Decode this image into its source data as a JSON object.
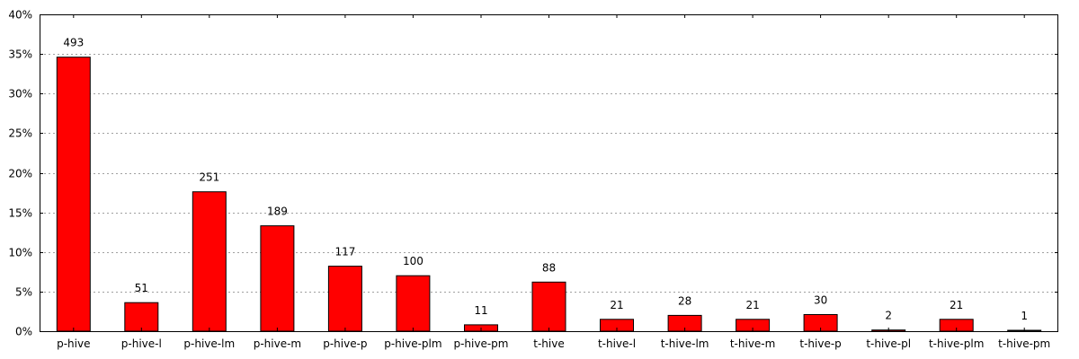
{
  "chart_data": {
    "type": "bar",
    "categories": [
      "p-hive",
      "p-hive-l",
      "p-hive-lm",
      "p-hive-m",
      "p-hive-p",
      "p-hive-plm",
      "p-hive-pm",
      "t-hive",
      "t-hive-l",
      "t-hive-lm",
      "t-hive-m",
      "t-hive-p",
      "t-hive-pl",
      "t-hive-plm",
      "t-hive-pm"
    ],
    "values": [
      34.6,
      3.6,
      17.6,
      13.3,
      8.2,
      7.0,
      0.8,
      6.2,
      1.5,
      2.0,
      1.5,
      2.1,
      0.15,
      1.5,
      0.08
    ],
    "labels": [
      "493",
      "51",
      "251",
      "189",
      "117",
      "100",
      "11",
      "88",
      "21",
      "28",
      "21",
      "30",
      "2",
      "21",
      "1"
    ],
    "y_ticks": [
      "0%",
      "5%",
      "10%",
      "15%",
      "20%",
      "25%",
      "30%",
      "35%",
      "40%"
    ],
    "ylim": [
      0,
      40
    ],
    "title": "",
    "xlabel": "",
    "ylabel": "",
    "grid": true,
    "bar_color": "#ff0000",
    "bar_edge_color": "#000000",
    "grid_color": "#a0a0a0"
  }
}
